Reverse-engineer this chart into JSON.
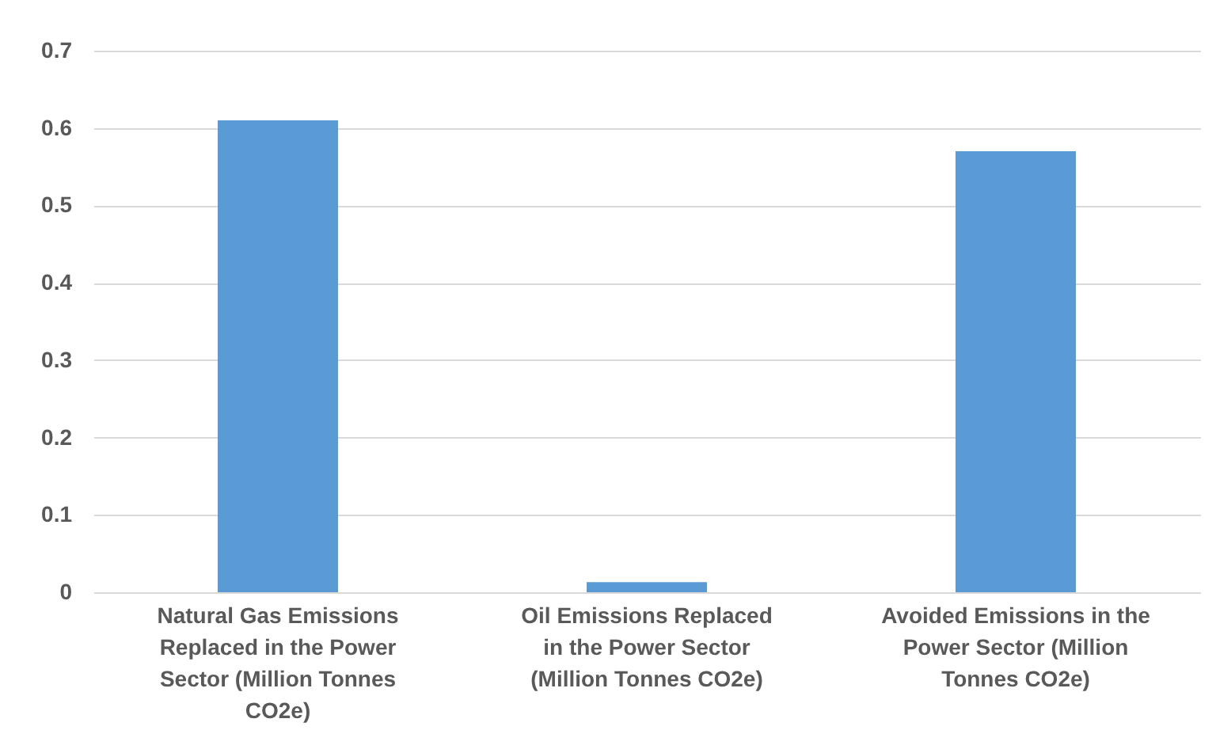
{
  "chart_data": {
    "type": "bar",
    "categories": [
      "Natural Gas Emissions Replaced in the Power Sector (Million Tonnes CO2e)",
      "Oil Emissions Replaced in the Power Sector (Million Tonnes CO2e)",
      "Avoided Emissions in the Power Sector (Million Tonnes CO2e)"
    ],
    "values": [
      0.61,
      0.013,
      0.57
    ],
    "color": "#5b9bd5",
    "ylim": [
      0,
      0.7
    ],
    "yticks": [
      0,
      0.1,
      0.2,
      0.3,
      0.4,
      0.5,
      0.6,
      0.7
    ],
    "grid": "y"
  }
}
